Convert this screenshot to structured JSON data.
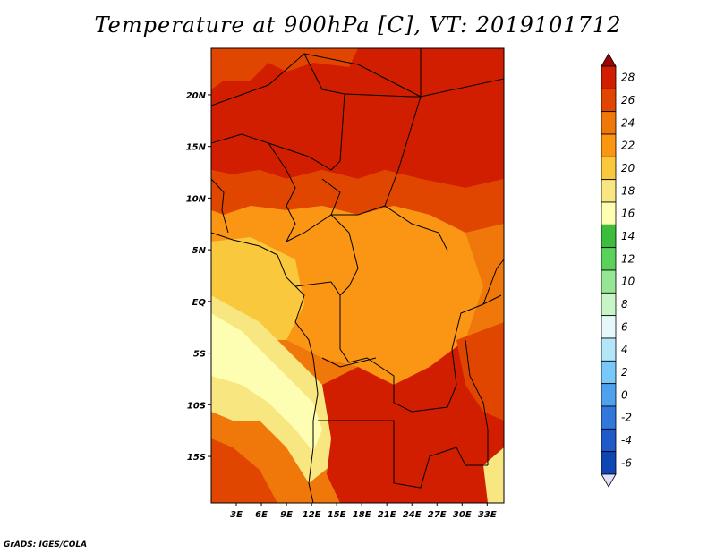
{
  "title": "Temperature at 900hPa [C], VT: 2019101712",
  "credit": "GrADS: IGES/COLA",
  "map": {
    "lon_range": [
      0,
      35
    ],
    "lat_range": [
      -19.5,
      24.5
    ],
    "lon_ticks": [
      "3E",
      "6E",
      "9E",
      "12E",
      "15E",
      "18E",
      "21E",
      "24E",
      "27E",
      "30E",
      "33E"
    ],
    "lat_ticks": [
      "20N",
      "15N",
      "10N",
      "5N",
      "EQ",
      "5S",
      "10S",
      "15S"
    ]
  },
  "colorbar": {
    "labels": [
      "28",
      "26",
      "24",
      "22",
      "20",
      "18",
      "16",
      "14",
      "12",
      "10",
      "8",
      "6",
      "4",
      "2",
      "0",
      "-2",
      "-4",
      "-6"
    ],
    "colors": [
      "#a00000",
      "#d21e00",
      "#e14600",
      "#f0780a",
      "#fa9614",
      "#fac83c",
      "#f8e680",
      "#fefeb2",
      "#3cbe3c",
      "#5ad25a",
      "#96e696",
      "#c8f5c8",
      "#e6f8fa",
      "#b4e6fa",
      "#78c8fa",
      "#50a0f0",
      "#3278dc",
      "#1e5ac8",
      "#1046b4",
      "#002080"
    ]
  },
  "regions_legend": {
    "hot_north": "#d21e00",
    "warm_center": "#fa9614",
    "cool_coast": "#fac83c"
  }
}
